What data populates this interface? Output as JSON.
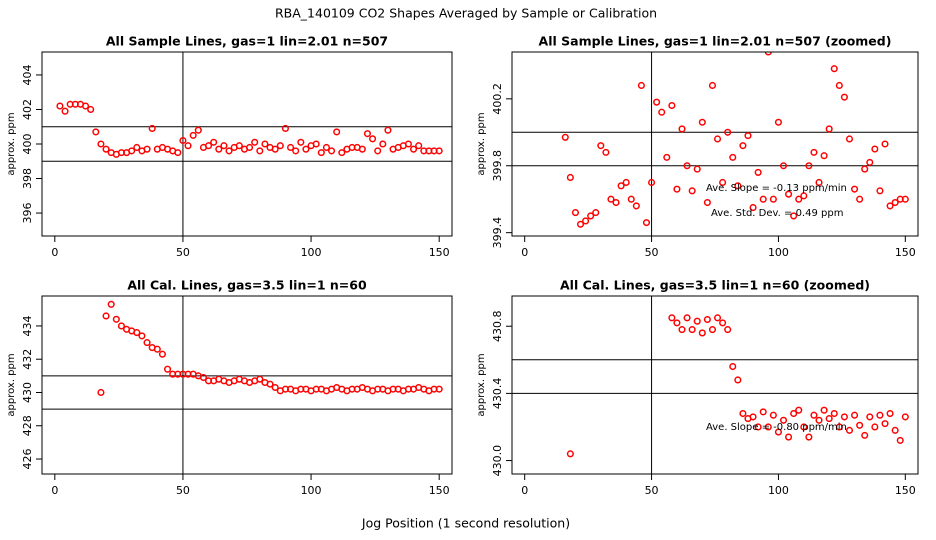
{
  "title": "RBA_140109  CO2 Shapes Averaged by Sample or Calibration",
  "x_label": "Jog Position (1 second resolution)",
  "chart_data": [
    {
      "type": "scatter",
      "title": "All Sample Lines, gas=1 lin=2.01 n=507",
      "ylabel": "approx. ppm",
      "xlim": [
        -5,
        155
      ],
      "ylim": [
        394.67,
        405.33
      ],
      "xticks": [
        0,
        50,
        100,
        150
      ],
      "yticks": [
        396,
        398,
        400,
        402,
        404
      ],
      "hlines": [
        401,
        399
      ],
      "vline": 50,
      "color": "#ff0000",
      "x": [
        2,
        4,
        6,
        8,
        10,
        12,
        14,
        16,
        18,
        20,
        22,
        24,
        26,
        28,
        30,
        32,
        34,
        36,
        38,
        40,
        42,
        44,
        46,
        48,
        50,
        52,
        54,
        56,
        58,
        60,
        62,
        64,
        66,
        68,
        70,
        72,
        74,
        76,
        78,
        80,
        82,
        84,
        86,
        88,
        90,
        92,
        94,
        96,
        98,
        100,
        102,
        104,
        106,
        108,
        110,
        112,
        114,
        116,
        118,
        120,
        122,
        124,
        126,
        128,
        130,
        132,
        134,
        136,
        138,
        140,
        142,
        144,
        146,
        148,
        150
      ],
      "values": [
        402.2,
        401.9,
        402.3,
        402.3,
        402.3,
        402.2,
        402.0,
        400.7,
        400.0,
        399.7,
        399.5,
        399.4,
        399.5,
        399.5,
        399.6,
        399.8,
        399.6,
        399.7,
        400.9,
        399.7,
        399.8,
        399.7,
        399.6,
        399.5,
        400.2,
        399.9,
        400.5,
        400.8,
        399.8,
        399.9,
        400.1,
        399.7,
        399.9,
        399.6,
        399.8,
        399.9,
        399.7,
        399.8,
        400.1,
        399.6,
        400.0,
        399.8,
        399.7,
        399.9,
        400.9,
        399.8,
        399.6,
        400.1,
        399.7,
        399.9,
        400.0,
        399.5,
        399.8,
        399.6,
        400.7,
        399.5,
        399.7,
        399.8,
        399.8,
        399.7,
        400.6,
        400.3,
        399.6,
        400.0,
        400.8,
        399.7,
        399.8,
        399.9,
        400.0,
        399.7,
        399.9,
        399.6,
        399.6,
        399.6,
        399.6
      ]
    },
    {
      "type": "scatter",
      "title": "All Sample Lines, gas=1 lin=2.01 n=507 (zoomed)",
      "ylabel": "approx. ppm",
      "xlim": [
        -5,
        155
      ],
      "ylim": [
        399.38,
        400.48
      ],
      "xticks": [
        0,
        50,
        100,
        150
      ],
      "yticks": [
        399.4,
        399.8,
        400.2
      ],
      "hlines": [
        400.0,
        399.8
      ],
      "vline": 50,
      "color": "#ff0000",
      "annotations": [
        "Ave. Slope = -0.13  ppm/min",
        "Ave. Std. Dev. = 0.49  ppm"
      ],
      "x": [
        16,
        18,
        20,
        22,
        24,
        26,
        28,
        30,
        32,
        34,
        36,
        38,
        40,
        42,
        44,
        46,
        48,
        50,
        52,
        54,
        56,
        58,
        60,
        62,
        64,
        66,
        68,
        70,
        72,
        74,
        76,
        78,
        80,
        82,
        84,
        86,
        88,
        90,
        92,
        94,
        96,
        98,
        100,
        102,
        104,
        106,
        108,
        110,
        112,
        114,
        116,
        118,
        120,
        122,
        124,
        126,
        128,
        130,
        132,
        134,
        136,
        138,
        140,
        142,
        144,
        146,
        148,
        150
      ],
      "values": [
        399.97,
        399.73,
        399.52,
        399.45,
        399.47,
        399.5,
        399.52,
        399.92,
        399.88,
        399.6,
        399.58,
        399.68,
        399.7,
        399.6,
        399.56,
        400.28,
        399.46,
        399.7,
        400.18,
        400.12,
        399.85,
        400.16,
        399.66,
        400.02,
        399.8,
        399.65,
        399.78,
        400.06,
        399.58,
        400.28,
        399.96,
        399.7,
        400.0,
        399.85,
        399.68,
        399.92,
        399.98,
        399.55,
        399.76,
        399.6,
        400.48,
        399.6,
        400.06,
        399.8,
        399.63,
        399.5,
        399.6,
        399.62,
        399.8,
        399.88,
        399.7,
        399.86,
        400.02,
        400.38,
        400.28,
        400.21,
        399.96,
        399.66,
        399.6,
        399.78,
        399.82,
        399.9,
        399.65,
        399.93,
        399.56,
        399.58,
        399.6,
        399.6
      ]
    },
    {
      "type": "scatter",
      "title": "All Cal. Lines, gas=3.5 lin=1 n=60",
      "ylabel": "approx. ppm",
      "xlim": [
        -5,
        155
      ],
      "ylim": [
        425.1,
        435.8
      ],
      "xticks": [
        0,
        50,
        100,
        150
      ],
      "yticks": [
        426,
        428,
        430,
        432,
        434
      ],
      "hlines": [
        431,
        429
      ],
      "vline": 50,
      "color": "#ff0000",
      "x": [
        18,
        20,
        22,
        24,
        26,
        28,
        30,
        32,
        34,
        36,
        38,
        40,
        42,
        44,
        46,
        48,
        50,
        52,
        54,
        56,
        58,
        60,
        62,
        64,
        66,
        68,
        70,
        72,
        74,
        76,
        78,
        80,
        82,
        84,
        86,
        88,
        90,
        92,
        94,
        96,
        98,
        100,
        102,
        104,
        106,
        108,
        110,
        112,
        114,
        116,
        118,
        120,
        122,
        124,
        126,
        128,
        130,
        132,
        134,
        136,
        138,
        140,
        142,
        144,
        146,
        148,
        150
      ],
      "values": [
        430.0,
        434.6,
        435.3,
        434.4,
        434.0,
        433.8,
        433.7,
        433.6,
        433.4,
        433.0,
        432.7,
        432.6,
        432.3,
        431.4,
        431.1,
        431.1,
        431.1,
        431.1,
        431.1,
        431.0,
        430.9,
        430.7,
        430.7,
        430.8,
        430.7,
        430.6,
        430.7,
        430.8,
        430.7,
        430.6,
        430.7,
        430.8,
        430.6,
        430.5,
        430.3,
        430.1,
        430.2,
        430.2,
        430.1,
        430.2,
        430.2,
        430.1,
        430.2,
        430.2,
        430.1,
        430.2,
        430.3,
        430.2,
        430.1,
        430.2,
        430.2,
        430.3,
        430.2,
        430.1,
        430.2,
        430.2,
        430.1,
        430.2,
        430.2,
        430.1,
        430.2,
        430.2,
        430.3,
        430.2,
        430.1,
        430.2,
        430.2
      ]
    },
    {
      "type": "scatter",
      "title": "All Cal. Lines, gas=3.5 lin=1 n=60 (zoomed)",
      "ylabel": "approx. ppm",
      "xlim": [
        -5,
        155
      ],
      "ylim": [
        429.92,
        430.98
      ],
      "xticks": [
        0,
        50,
        100,
        150
      ],
      "yticks": [
        {
          "value": 430.0,
          "label": "430.0"
        },
        430.4,
        430.8
      ],
      "hlines": [
        430.6,
        430.4
      ],
      "vline": 50,
      "color": "#ff0000",
      "annotations": [
        "Ave. Slope = -0.80  ppm/min"
      ],
      "x": [
        18,
        58,
        60,
        62,
        64,
        66,
        68,
        70,
        72,
        74,
        76,
        78,
        80,
        82,
        84,
        86,
        88,
        90,
        92,
        94,
        96,
        98,
        100,
        102,
        104,
        106,
        108,
        110,
        112,
        114,
        116,
        118,
        120,
        122,
        124,
        126,
        128,
        130,
        132,
        134,
        136,
        138,
        140,
        142,
        144,
        146,
        148,
        150
      ],
      "values": [
        430.04,
        430.85,
        430.82,
        430.78,
        430.85,
        430.78,
        430.83,
        430.76,
        430.84,
        430.78,
        430.85,
        430.82,
        430.78,
        430.56,
        430.48,
        430.28,
        430.25,
        430.26,
        430.2,
        430.29,
        430.2,
        430.27,
        430.17,
        430.24,
        430.14,
        430.28,
        430.3,
        430.2,
        430.14,
        430.27,
        430.24,
        430.3,
        430.25,
        430.28,
        430.2,
        430.26,
        430.18,
        430.27,
        430.21,
        430.15,
        430.26,
        430.2,
        430.27,
        430.22,
        430.28,
        430.18,
        430.12,
        430.26
      ]
    }
  ]
}
